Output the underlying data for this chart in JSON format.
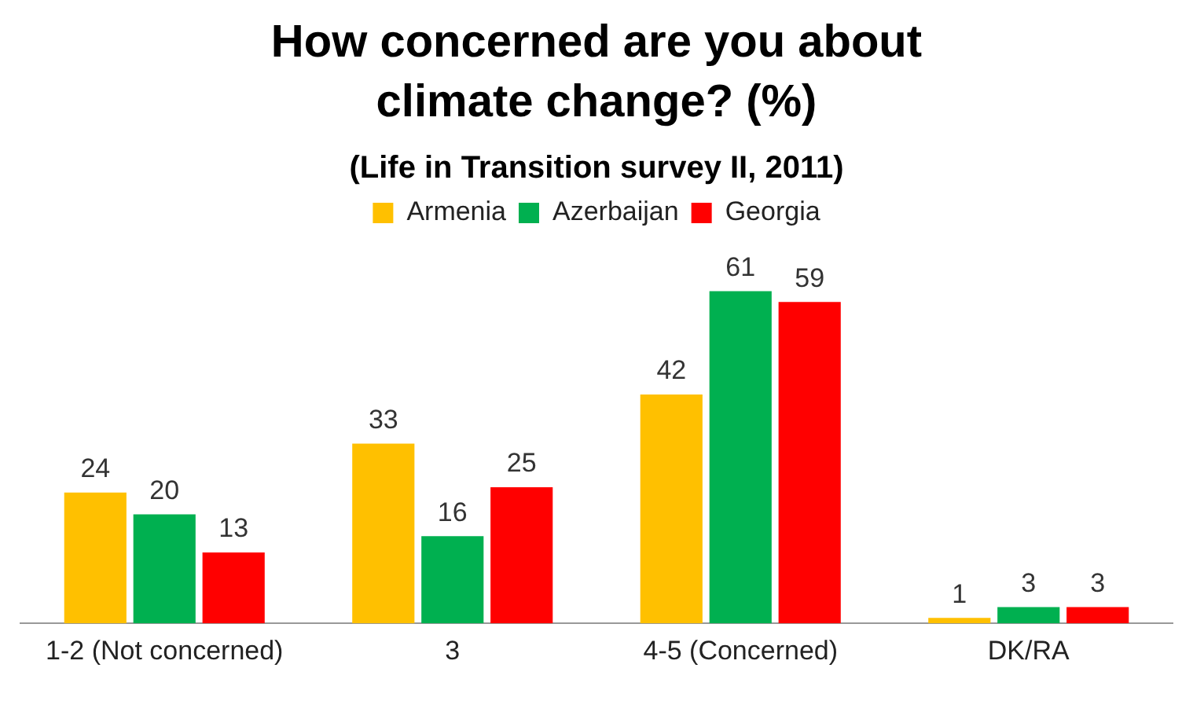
{
  "chart_data": {
    "type": "bar",
    "title": "How concerned are you about climate change? (%)",
    "subtitle": "(Life in Transition survey II, 2011)",
    "categories": [
      "1-2 (Not concerned)",
      "3",
      "4-5 (Concerned)",
      "DK/RA"
    ],
    "series": [
      {
        "name": "Armenia",
        "color": "#ffc000",
        "values": [
          24,
          33,
          42,
          1
        ]
      },
      {
        "name": "Azerbaijan",
        "color": "#00b050",
        "values": [
          20,
          16,
          61,
          3
        ]
      },
      {
        "name": "Georgia",
        "color": "#ff0000",
        "values": [
          13,
          25,
          59,
          3
        ]
      }
    ],
    "data_labels": true,
    "tick_labels": "x",
    "legend": "top",
    "grid": false
  }
}
